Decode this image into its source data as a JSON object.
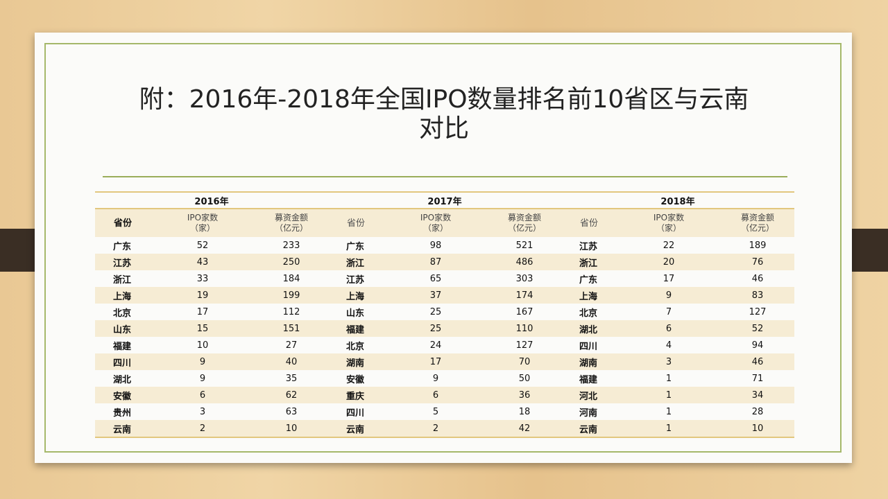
{
  "title_line1": "附：2016年-2018年全国IPO数量排名前10省区与云南",
  "title_line2": "对比",
  "years": [
    "2016年",
    "2017年",
    "2018年"
  ],
  "headers": {
    "province": "省份",
    "ipo": "IPO家数",
    "ipo_unit": "（家）",
    "amount": "募资金额",
    "amount_unit": "（亿元）"
  },
  "rows": [
    [
      "广东",
      "52",
      "233",
      "广东",
      "98",
      "521",
      "江苏",
      "22",
      "189"
    ],
    [
      "江苏",
      "43",
      "250",
      "浙江",
      "87",
      "486",
      "浙江",
      "20",
      "76"
    ],
    [
      "浙江",
      "33",
      "184",
      "江苏",
      "65",
      "303",
      "广东",
      "17",
      "46"
    ],
    [
      "上海",
      "19",
      "199",
      "上海",
      "37",
      "174",
      "上海",
      "9",
      "83"
    ],
    [
      "北京",
      "17",
      "112",
      "山东",
      "25",
      "167",
      "北京",
      "7",
      "127"
    ],
    [
      "山东",
      "15",
      "151",
      "福建",
      "25",
      "110",
      "湖北",
      "6",
      "52"
    ],
    [
      "福建",
      "10",
      "27",
      "北京",
      "24",
      "127",
      "四川",
      "4",
      "94"
    ],
    [
      "四川",
      "9",
      "40",
      "湖南",
      "17",
      "70",
      "湖南",
      "3",
      "46"
    ],
    [
      "湖北",
      "9",
      "35",
      "安徽",
      "9",
      "50",
      "福建",
      "1",
      "71"
    ],
    [
      "安徽",
      "6",
      "62",
      "重庆",
      "6",
      "36",
      "河北",
      "1",
      "34"
    ],
    [
      "贵州",
      "3",
      "63",
      "四川",
      "5",
      "18",
      "河南",
      "1",
      "28"
    ],
    [
      "云南",
      "2",
      "10",
      "云南",
      "2",
      "42",
      "云南",
      "1",
      "10"
    ]
  ]
}
